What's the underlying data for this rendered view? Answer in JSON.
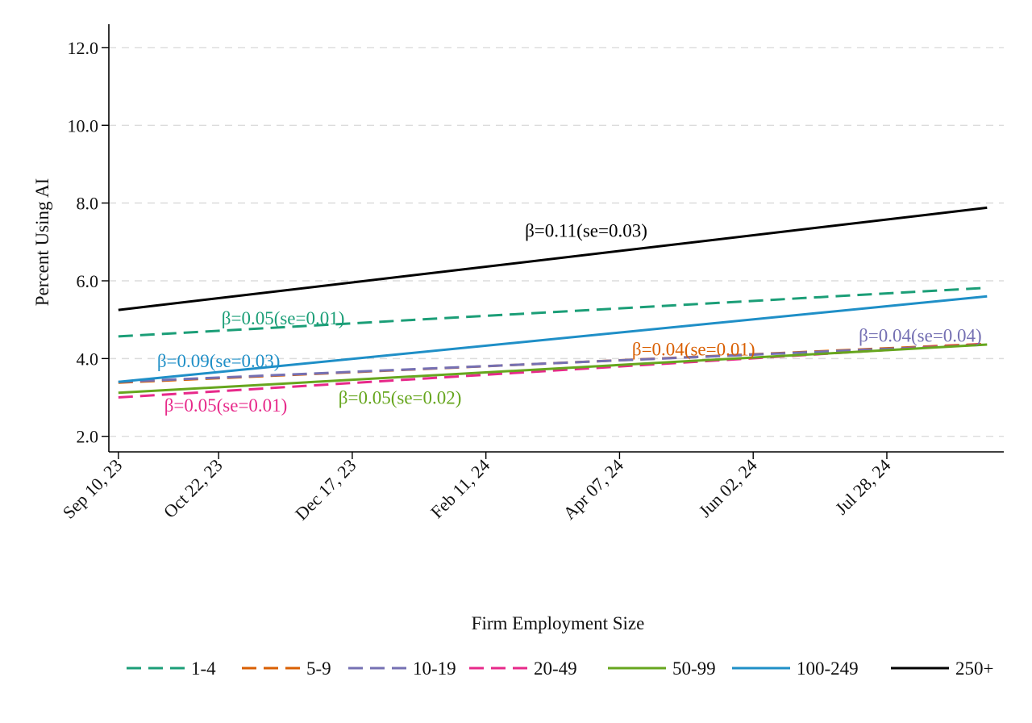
{
  "chart_data": {
    "type": "line",
    "title": "",
    "xlabel": "",
    "ylabel": "Percent Using AI",
    "ylim": [
      1.6,
      12.6
    ],
    "yticks": [
      2.0,
      4.0,
      6.0,
      8.0,
      10.0,
      12.0
    ],
    "ytick_labels": [
      "2.0",
      "4.0",
      "6.0",
      "8.0",
      "10.0",
      "12.0"
    ],
    "xlim": [
      "2023-09-06",
      "2024-09-15"
    ],
    "xticks": [
      "2023-09-10",
      "2023-10-22",
      "2023-12-17",
      "2024-02-11",
      "2024-04-07",
      "2024-06-02",
      "2024-07-28"
    ],
    "xtick_labels": [
      "Sep 10, 23",
      "Oct 22, 23",
      "Dec 17, 23",
      "Feb 11, 24",
      "Apr 07, 24",
      "Jun 02, 24",
      "Jul 28, 24"
    ],
    "grid": true,
    "legend_title": "Firm Employment Size",
    "legend_position": "bottom",
    "series": [
      {
        "name": "1-4",
        "color": "#1b9e77",
        "dash": "dashed",
        "x": [
          "2023-09-10",
          "2024-09-08"
        ],
        "y": [
          4.57,
          5.82
        ],
        "annotation": {
          "text": "β=0.05(se=0.01)",
          "x": "2023-11-18",
          "y": 5.05
        }
      },
      {
        "name": "5-9",
        "color": "#d95f02",
        "dash": "dashed",
        "x": [
          "2023-09-10",
          "2024-09-08"
        ],
        "y": [
          3.38,
          4.38
        ],
        "annotation": {
          "text": "β=0.04(se=0.01)",
          "x": "2024-05-08",
          "y": 4.25
        }
      },
      {
        "name": "10-19",
        "color": "#7570b3",
        "dash": "dashed",
        "x": [
          "2023-09-10",
          "2024-09-08"
        ],
        "y": [
          3.4,
          4.36
        ],
        "annotation": {
          "text": "β=0.04(se=0.04)",
          "x": "2024-08-11",
          "y": 4.6
        }
      },
      {
        "name": "20-49",
        "color": "#e7298a",
        "dash": "dashed",
        "x": [
          "2023-09-10",
          "2024-09-08"
        ],
        "y": [
          3.0,
          4.38
        ],
        "annotation": {
          "text": "β=0.05(se=0.01)",
          "x": "2023-10-25",
          "y": 2.8
        }
      },
      {
        "name": "50-99",
        "color": "#66a61e",
        "dash": "solid",
        "x": [
          "2023-09-10",
          "2024-09-08"
        ],
        "y": [
          3.12,
          4.36
        ],
        "annotation": {
          "text": "β=0.05(se=0.02)",
          "x": "2024-01-06",
          "y": 3.0
        }
      },
      {
        "name": "100-249",
        "color": "#1f8fc7",
        "dash": "solid",
        "x": [
          "2023-09-10",
          "2024-09-08"
        ],
        "y": [
          3.4,
          5.6
        ],
        "annotation": {
          "text": "β=0.09(se=0.03)",
          "x": "2023-10-22",
          "y": 3.95
        }
      },
      {
        "name": "250+",
        "color": "#000000",
        "dash": "solid",
        "x": [
          "2023-09-10",
          "2024-09-08"
        ],
        "y": [
          5.25,
          7.88
        ],
        "annotation": {
          "text": "β=0.11(se=0.03)",
          "x": "2024-03-24",
          "y": 7.3
        }
      }
    ]
  }
}
